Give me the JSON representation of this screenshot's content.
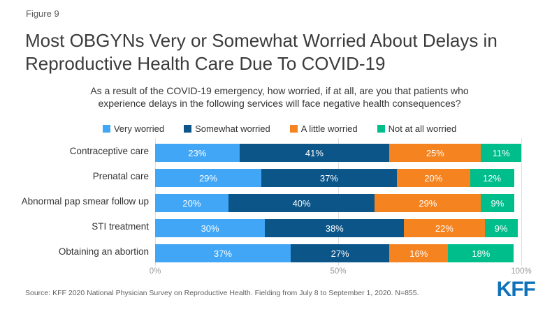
{
  "figure_label": "Figure 9",
  "title": "Most OBGYNs Very or Somewhat Worried About Delays in Reproductive Health Care Due To COVID-19",
  "subtitle": "As a result of the COVID-19 emergency, how worried, if at all, are you that patients who experience delays in the following services will face negative health consequences?",
  "colors": {
    "very_worried": "#41a6f6",
    "somewhat_worried": "#0b5589",
    "a_little_worried": "#f5831f",
    "not_at_all_worried": "#00be8c",
    "gridline": "#e0e0e0",
    "kff_blue": "#0e72bb"
  },
  "chart_data": {
    "type": "bar",
    "orientation": "horizontal",
    "stacked": true,
    "grid": true,
    "legend_position": "top",
    "xlim": [
      0,
      100
    ],
    "categories": [
      "Contraceptive care",
      "Prenatal care",
      "Abnormal pap smear follow up",
      "STI treatment",
      "Obtaining an abortion"
    ],
    "series": [
      {
        "name": "Very worried",
        "color": "#41a6f6",
        "values": [
          23,
          29,
          20,
          30,
          37
        ]
      },
      {
        "name": "Somewhat worried",
        "color": "#0b5589",
        "values": [
          41,
          37,
          40,
          38,
          27
        ]
      },
      {
        "name": "A little worried",
        "color": "#f5831f",
        "values": [
          25,
          20,
          29,
          22,
          16
        ]
      },
      {
        "name": "Not at all worried",
        "color": "#00be8c",
        "values": [
          11,
          12,
          9,
          9,
          18
        ]
      }
    ],
    "value_label_suffix": "%",
    "x_ticks": [
      {
        "label": "0%",
        "value": 0
      },
      {
        "label": "50%",
        "value": 50
      },
      {
        "label": "100%",
        "value": 100
      }
    ]
  },
  "source": "Source: KFF 2020 National Physician Survey on Reproductive Health. Fielding from July 8 to September 1, 2020. N=855.",
  "logo_text": "KFF"
}
